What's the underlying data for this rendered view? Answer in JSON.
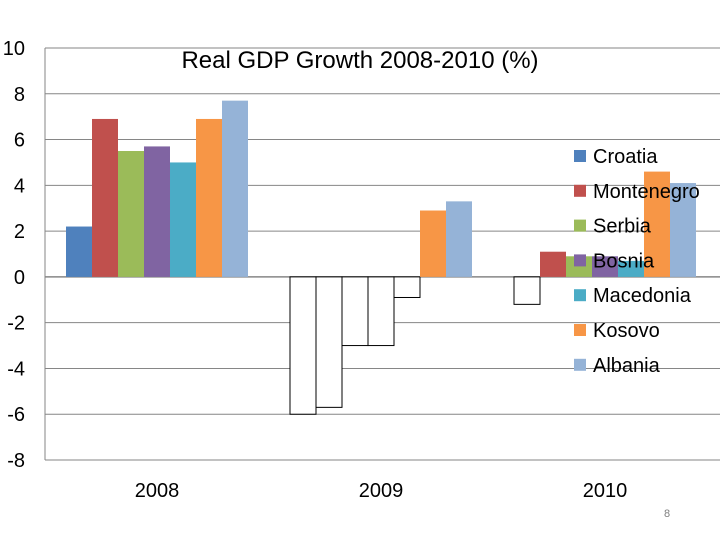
{
  "chart_data": {
    "type": "bar",
    "title": "Real GDP Growth 2008-2010 (%)",
    "xlabel": "",
    "ylabel": "",
    "ylim": [
      -8,
      10
    ],
    "yticks": [
      10,
      8,
      6,
      4,
      2,
      0,
      -2,
      -4,
      -6,
      -8
    ],
    "grid": true,
    "legend_position": "right",
    "categories": [
      "2008",
      "2009",
      "2010"
    ],
    "series": [
      {
        "name": "Croatia",
        "color": "#4F81BD",
        "values": [
          2.2,
          -6.0,
          -1.2
        ]
      },
      {
        "name": "Montenegro",
        "color": "#C0504D",
        "values": [
          6.9,
          -5.7,
          1.1
        ]
      },
      {
        "name": "Serbia",
        "color": "#9BBB59",
        "values": [
          5.5,
          -3.0,
          0.9
        ]
      },
      {
        "name": "Bosnia",
        "color": "#8064A2",
        "values": [
          5.7,
          -3.0,
          0.9
        ]
      },
      {
        "name": "Macedonia",
        "color": "#4BACC6",
        "values": [
          5.0,
          -0.9,
          0.7
        ]
      },
      {
        "name": "Kosovo",
        "color": "#F79646",
        "values": [
          6.9,
          2.9,
          4.6
        ]
      },
      {
        "name": "Albania",
        "color": "#95B3D7",
        "values": [
          7.7,
          3.3,
          4.1
        ]
      }
    ],
    "negative_bar_fill": "#FFFFFF",
    "negative_bar_stroke": "#000000"
  },
  "slide": {
    "number": "8"
  }
}
